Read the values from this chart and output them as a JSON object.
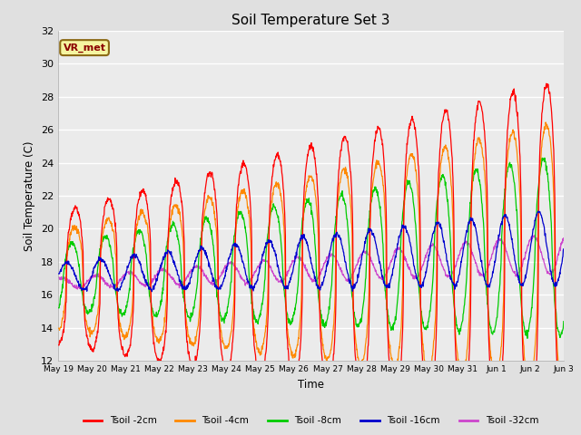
{
  "title": "Soil Temperature Set 3",
  "xlabel": "Time",
  "ylabel": "Soil Temperature (C)",
  "ylim": [
    12,
    32
  ],
  "yticks": [
    12,
    14,
    16,
    18,
    20,
    22,
    24,
    26,
    28,
    30,
    32
  ],
  "fig_bg_color": "#e0e0e0",
  "plot_bg_color": "#ebebeb",
  "annotation_text": "VR_met",
  "annotation_box_color": "#f5f5a0",
  "annotation_text_color": "#8b0000",
  "annotation_border_color": "#8b6914",
  "series_colors": [
    "#ff0000",
    "#ff8800",
    "#00cc00",
    "#0000cc",
    "#cc44cc"
  ],
  "series_labels": [
    "Tsoil -2cm",
    "Tsoil -4cm",
    "Tsoil -8cm",
    "Tsoil -16cm",
    "Tsoil -32cm"
  ],
  "x_tick_labels": [
    "May 19",
    "May 20",
    "May 21",
    "May 22",
    "May 23",
    "May 24",
    "May 25",
    "May 26",
    "May 27",
    "May 28",
    "May 29",
    "May 30",
    "May 31",
    "Jun 1",
    "Jun 2",
    "Jun 3"
  ],
  "n_days": 15,
  "samples_per_day": 96
}
